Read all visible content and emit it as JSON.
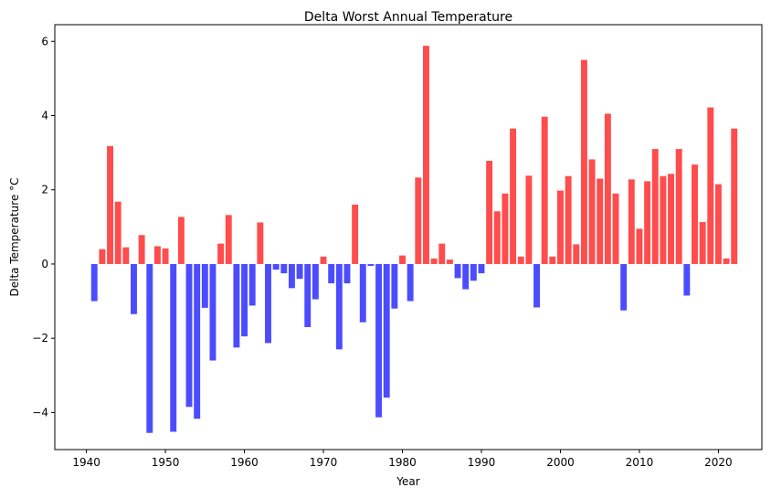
{
  "chart_data": {
    "type": "bar",
    "title": "Delta Worst Annual Temperature",
    "xlabel": "Year",
    "ylabel": "Delta Temperature °C",
    "xlim": [
      1936.0,
      2025.5
    ],
    "ylim": [
      -5.0,
      6.45
    ],
    "xticks": [
      1940,
      1950,
      1960,
      1970,
      1980,
      1990,
      2000,
      2010,
      2020
    ],
    "yticks": [
      -4,
      -2,
      0,
      2,
      4,
      6
    ],
    "ytick_labels": [
      "−4",
      "−2",
      "0",
      "2",
      "4",
      "6"
    ],
    "grid": false,
    "colors": {
      "positive": "#ff4c4c",
      "negative": "#4c4cff"
    },
    "series": [
      {
        "name": "Delta Temperature",
        "x": [
          1941,
          1942,
          1943,
          1944,
          1945,
          1946,
          1947,
          1948,
          1949,
          1950,
          1951,
          1952,
          1953,
          1954,
          1955,
          1956,
          1957,
          1958,
          1959,
          1960,
          1961,
          1962,
          1963,
          1964,
          1965,
          1966,
          1967,
          1968,
          1969,
          1970,
          1971,
          1972,
          1973,
          1974,
          1975,
          1976,
          1977,
          1978,
          1979,
          1980,
          1981,
          1982,
          1983,
          1984,
          1985,
          1986,
          1987,
          1988,
          1989,
          1990,
          1991,
          1992,
          1993,
          1994,
          1995,
          1996,
          1997,
          1998,
          1999,
          2000,
          2001,
          2002,
          2003,
          2004,
          2005,
          2006,
          2007,
          2008,
          2009,
          2010,
          2011,
          2012,
          2013,
          2014,
          2015,
          2016,
          2017,
          2018,
          2019,
          2020,
          2021,
          2022
        ],
        "values": [
          -1.0,
          0.4,
          3.18,
          1.68,
          0.45,
          -1.35,
          0.78,
          -4.55,
          0.48,
          0.42,
          -4.52,
          1.27,
          -3.85,
          -4.17,
          -1.18,
          -2.6,
          0.55,
          1.32,
          -2.25,
          -1.95,
          -1.12,
          1.12,
          -2.13,
          -0.15,
          -0.25,
          -0.65,
          -0.4,
          -1.7,
          -0.95,
          0.2,
          -0.52,
          -2.3,
          -0.52,
          1.6,
          -1.57,
          -0.05,
          -4.13,
          -3.6,
          -1.2,
          0.23,
          -1.0,
          2.33,
          5.88,
          0.15,
          0.55,
          0.12,
          -0.38,
          -0.68,
          -0.45,
          -0.25,
          2.78,
          1.42,
          1.9,
          3.65,
          0.2,
          2.38,
          -1.17,
          3.97,
          0.2,
          1.98,
          2.37,
          0.53,
          5.5,
          2.82,
          2.3,
          4.05,
          1.9,
          -1.25,
          2.28,
          0.95,
          2.23,
          3.1,
          2.37,
          2.43,
          3.1,
          -0.85,
          2.68,
          1.13,
          4.22,
          2.15,
          0.15,
          3.65
        ]
      }
    ]
  }
}
